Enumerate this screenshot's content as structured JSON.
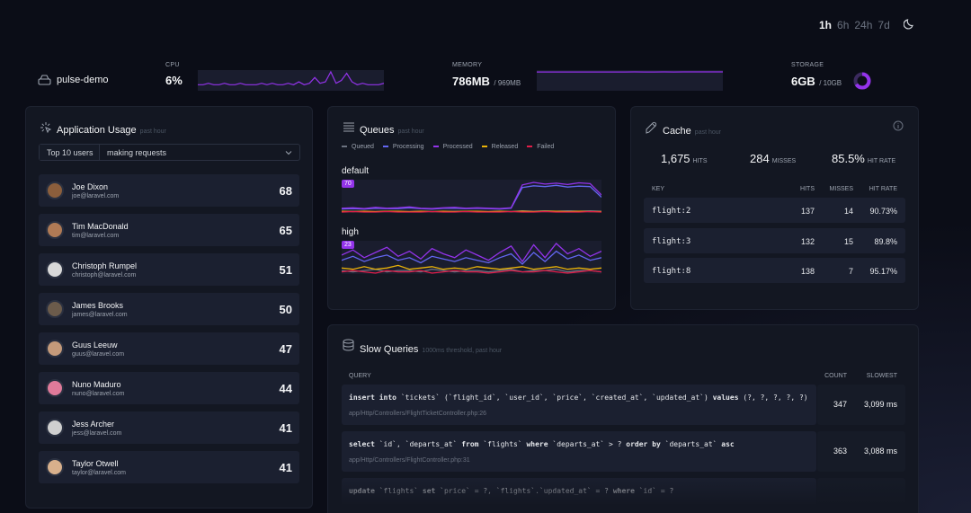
{
  "header": {
    "periods": [
      "1h",
      "6h",
      "24h",
      "7d"
    ],
    "selected_period": "1h"
  },
  "server": {
    "name": "pulse-demo",
    "cpu": {
      "label": "CPU",
      "value": "6%",
      "history": [
        3,
        3,
        4,
        3,
        3,
        4,
        3,
        3,
        4,
        3,
        3,
        3,
        4,
        3,
        4,
        3,
        3,
        4,
        3,
        5,
        3,
        4,
        8,
        4,
        5,
        12,
        4,
        6,
        11,
        5,
        3,
        4,
        3,
        3,
        3,
        4
      ]
    },
    "memory": {
      "label": "MEMORY",
      "value": "786MB",
      "total": "/ 969MB",
      "history": [
        780,
        781,
        780,
        782,
        781,
        783,
        782,
        781,
        782,
        783,
        784,
        783,
        782,
        784,
        783,
        785,
        784,
        786,
        785,
        786
      ]
    },
    "storage": {
      "label": "STORAGE",
      "value": "6GB",
      "total": "/ 10GB"
    }
  },
  "usage": {
    "title": "Application Usage",
    "subtitle": "past hour",
    "filter_limit": "Top 10 users",
    "filter_type": "making requests",
    "users": [
      {
        "name": "Joe Dixon",
        "email": "joe@laravel.com",
        "count": "68"
      },
      {
        "name": "Tim MacDonald",
        "email": "tim@laravel.com",
        "count": "65"
      },
      {
        "name": "Christoph Rumpel",
        "email": "christoph@laravel.com",
        "count": "51"
      },
      {
        "name": "James Brooks",
        "email": "james@laravel.com",
        "count": "50"
      },
      {
        "name": "Guus Leeuw",
        "email": "guus@laravel.com",
        "count": "47"
      },
      {
        "name": "Nuno Maduro",
        "email": "nuno@laravel.com",
        "count": "44"
      },
      {
        "name": "Jess Archer",
        "email": "jess@laravel.com",
        "count": "41"
      },
      {
        "name": "Taylor Otwell",
        "email": "taylor@laravel.com",
        "count": "41"
      }
    ]
  },
  "queues": {
    "title": "Queues",
    "subtitle": "past hour",
    "series": [
      {
        "name": "Queued",
        "color": "#6b7280"
      },
      {
        "name": "Processing",
        "color": "#6366f1"
      },
      {
        "name": "Processed",
        "color": "#9333ea"
      },
      {
        "name": "Released",
        "color": "#eab308"
      },
      {
        "name": "Failed",
        "color": "#e11d48"
      }
    ],
    "items": [
      {
        "name": "default",
        "peak": 70,
        "values": [
          [
            1,
            2,
            1,
            1,
            2,
            1,
            1,
            2,
            1,
            1,
            2,
            1,
            1,
            1,
            2,
            1,
            3,
            2,
            3,
            2,
            3,
            2,
            3,
            2
          ],
          [
            7,
            8,
            7,
            9,
            8,
            8,
            10,
            8,
            7,
            9,
            9,
            8,
            9,
            8,
            7,
            9,
            58,
            62,
            60,
            63,
            59,
            61,
            60,
            35
          ],
          [
            9,
            10,
            8,
            11,
            9,
            10,
            12,
            9,
            8,
            10,
            11,
            9,
            10,
            9,
            8,
            10,
            64,
            70,
            66,
            68,
            65,
            69,
            67,
            40
          ],
          [
            2,
            1,
            2,
            1,
            2,
            2,
            1,
            2,
            1,
            2,
            1,
            2,
            2,
            1,
            2,
            1,
            2,
            1,
            2,
            2,
            1,
            2,
            1,
            1
          ],
          [
            0,
            1,
            0,
            0,
            1,
            0,
            0,
            0,
            1,
            0,
            0,
            1,
            0,
            0,
            0,
            1,
            0,
            0,
            1,
            0,
            0,
            0,
            1,
            0
          ]
        ]
      },
      {
        "name": "high",
        "peak": 23,
        "values": [
          [
            2,
            1,
            2,
            3,
            1,
            2,
            2,
            1,
            3,
            2,
            1,
            2,
            2,
            1,
            2,
            3,
            1,
            2,
            2,
            3,
            1,
            2,
            2,
            1
          ],
          [
            10,
            13,
            9,
            12,
            14,
            10,
            12,
            8,
            13,
            11,
            9,
            12,
            10,
            8,
            12,
            15,
            7,
            16,
            9,
            17,
            11,
            14,
            10,
            12
          ],
          [
            14,
            18,
            12,
            16,
            20,
            13,
            17,
            11,
            19,
            15,
            12,
            18,
            14,
            10,
            16,
            21,
            9,
            22,
            12,
            23,
            15,
            19,
            13,
            17
          ],
          [
            4,
            3,
            5,
            3,
            4,
            6,
            3,
            4,
            5,
            3,
            4,
            3,
            5,
            4,
            3,
            4,
            5,
            3,
            4,
            5,
            3,
            4,
            3,
            4
          ],
          [
            1,
            2,
            1,
            0,
            2,
            1,
            1,
            2,
            0,
            1,
            2,
            1,
            1,
            0,
            1,
            2,
            1,
            1,
            2,
            1,
            0,
            1,
            2,
            1
          ]
        ]
      }
    ]
  },
  "cache": {
    "title": "Cache",
    "subtitle": "past hour",
    "summary": [
      {
        "value": "1,675",
        "label": "HITS"
      },
      {
        "value": "284",
        "label": "MISSES"
      },
      {
        "value": "85.5%",
        "label": "HIT RATE"
      }
    ],
    "columns": [
      "KEY",
      "HITS",
      "MISSES",
      "HIT RATE"
    ],
    "rows": [
      [
        "flight:2",
        "137",
        "14",
        "90.73%"
      ],
      [
        "flight:3",
        "132",
        "15",
        "89.8%"
      ],
      [
        "flight:8",
        "138",
        "7",
        "95.17%"
      ]
    ]
  },
  "slow_queries": {
    "title": "Slow Queries",
    "subtitle": "1000ms threshold, past hour",
    "columns": [
      "QUERY",
      "COUNT",
      "SLOWEST"
    ],
    "rows": [
      {
        "sql": "insert into `tickets` (`flight_id`, `user_id`, `price`, `created_at`, `updated_at`) values (?, ?, ?, ?, ?)",
        "location": "app/Http/Controllers/FlightTicketController.php:26",
        "count": "347",
        "slowest": "3,099 ms"
      },
      {
        "sql": "select `id`, `departs_at` from `flights` where `departs_at` > ? order by `departs_at` asc",
        "location": "app/Http/Controllers/FlightController.php:31",
        "count": "363",
        "slowest": "3,088 ms"
      },
      {
        "sql": "update `flights` set `price` = ?, `flights`.`updated_at` = ? where `id` = ?"
      }
    ]
  }
}
